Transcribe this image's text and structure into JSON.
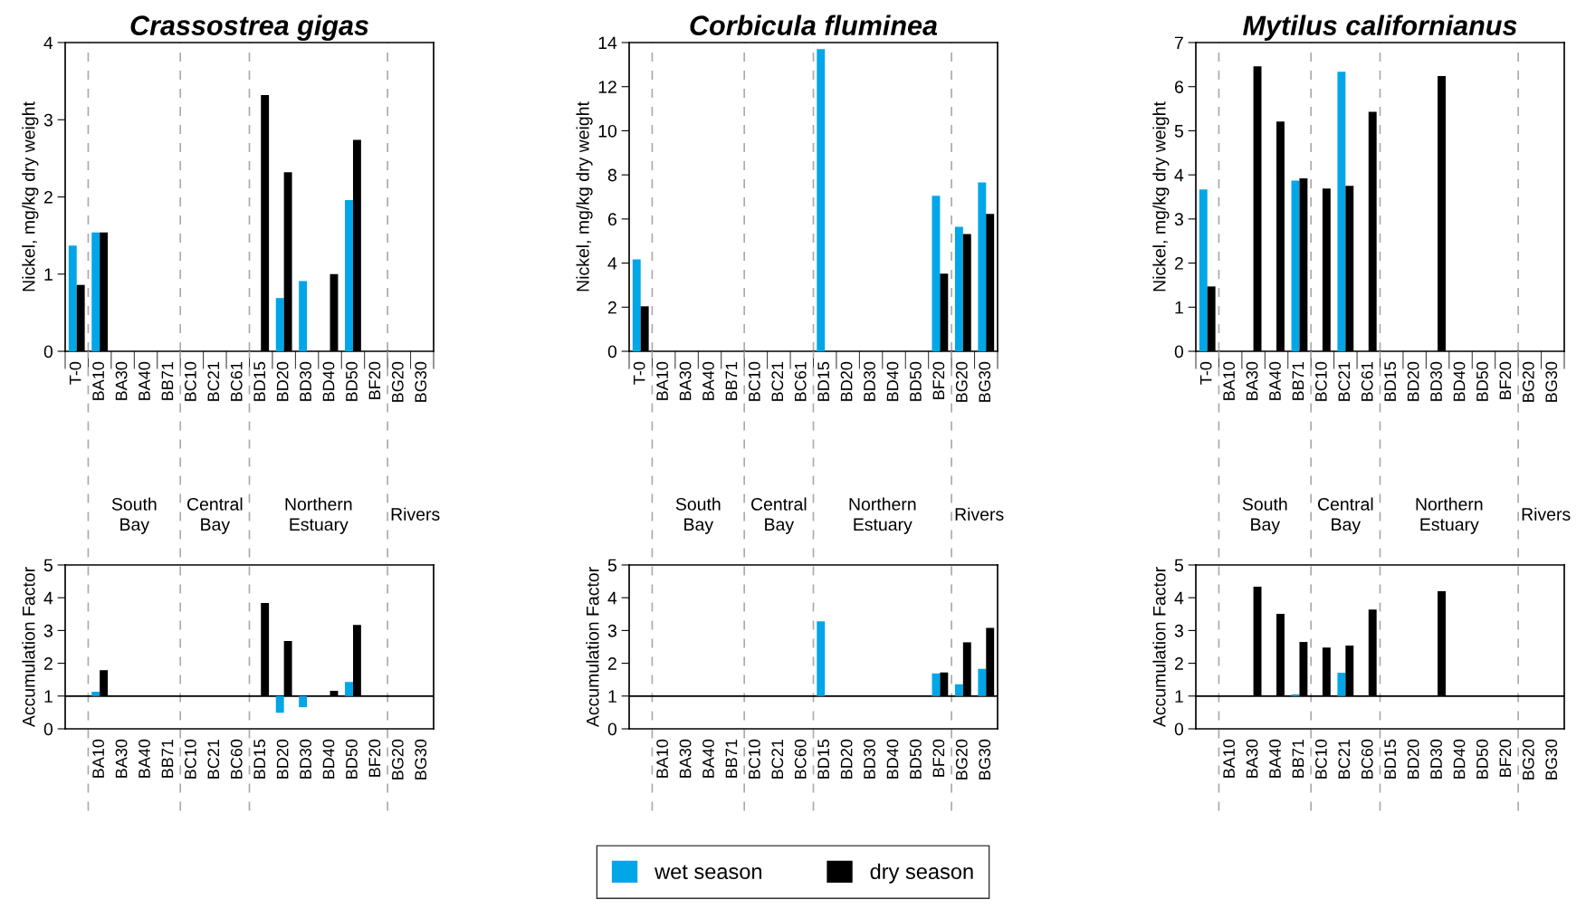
{
  "chart_data": [
    {
      "type": "bar",
      "title": "Crassostrea gigas",
      "ylabel": "Nickel, mg/kg dry weight",
      "categories": [
        "T-0",
        "BA10",
        "BA30",
        "BA40",
        "BB71",
        "BC10",
        "BC21",
        "BC61",
        "BD15",
        "BD20",
        "BD30",
        "BD40",
        "BD50",
        "BF20",
        "BG20",
        "BG30"
      ],
      "series": [
        {
          "name": "wet season",
          "color": "#00a6e8",
          "values": [
            1.37,
            1.54,
            null,
            null,
            null,
            null,
            null,
            null,
            null,
            0.69,
            0.91,
            null,
            1.96,
            null,
            null,
            null
          ]
        },
        {
          "name": "dry season",
          "color": "#000000",
          "values": [
            0.86,
            1.54,
            null,
            null,
            null,
            null,
            null,
            null,
            3.32,
            2.32,
            null,
            1.0,
            2.74,
            null,
            null,
            null
          ]
        }
      ],
      "ylim": [
        0,
        4
      ],
      "yticks": [
        0,
        1,
        2,
        3,
        4
      ],
      "legend": "bottom"
    },
    {
      "type": "bar",
      "title": "Corbicula fluminea",
      "ylabel": "Nickel, mg/kg dry weight",
      "categories": [
        "T-0",
        "BA10",
        "BA30",
        "BA40",
        "BB71",
        "BC10",
        "BC21",
        "BC61",
        "BD15",
        "BD20",
        "BD30",
        "BD40",
        "BD50",
        "BF20",
        "BG20",
        "BG30"
      ],
      "series": [
        {
          "color": "#00a6e8",
          "values": [
            4.17,
            null,
            null,
            null,
            null,
            null,
            null,
            null,
            13.7,
            null,
            null,
            null,
            null,
            7.05,
            5.65,
            7.66
          ]
        },
        {
          "color": "#000000",
          "values": [
            2.04,
            null,
            null,
            null,
            null,
            null,
            null,
            null,
            null,
            null,
            null,
            null,
            null,
            3.52,
            5.32,
            6.23
          ]
        }
      ],
      "ylim": [
        0,
        14
      ],
      "yticks": [
        0,
        2,
        4,
        6,
        8,
        10,
        12,
        14
      ]
    },
    {
      "type": "bar",
      "title": "Mytilus californianus",
      "ylabel": "Nickel, mg/kg dry weight",
      "categories": [
        "T-0",
        "BA10",
        "BA30",
        "BA40",
        "BB71",
        "BC10",
        "BC21",
        "BC61",
        "BD15",
        "BD20",
        "BD30",
        "BD40",
        "BD50",
        "BF20",
        "BG20",
        "BG30"
      ],
      "series": [
        {
          "color": "#00a6e8",
          "values": [
            3.67,
            null,
            null,
            null,
            3.87,
            null,
            6.34,
            null,
            null,
            null,
            null,
            null,
            null,
            null,
            null,
            null
          ]
        },
        {
          "color": "#000000",
          "values": [
            1.47,
            null,
            6.46,
            5.21,
            3.92,
            3.69,
            3.75,
            5.43,
            null,
            null,
            6.24,
            null,
            null,
            null,
            null,
            null
          ]
        }
      ],
      "ylim": [
        0,
        7
      ],
      "yticks": [
        0,
        1,
        2,
        3,
        4,
        5,
        6,
        7
      ]
    },
    {
      "type": "bar",
      "ylabel": "Accumulation Factor",
      "categories": [
        null,
        "BA10",
        "BA30",
        "BA40",
        "BB71",
        "BC10",
        "BC21",
        "BC60",
        "BD15",
        "BD20",
        "BD30",
        "BD40",
        "BD50",
        "BF20",
        "BG20",
        "BG30"
      ],
      "series": [
        {
          "color": "#00a6e8",
          "base": [
            null,
            1,
            null,
            null,
            null,
            null,
            null,
            null,
            null,
            1,
            1,
            null,
            1,
            null,
            null,
            null
          ],
          "values": [
            null,
            0.13,
            null,
            null,
            null,
            null,
            null,
            null,
            null,
            -0.51,
            -0.34,
            null,
            0.43,
            null,
            null,
            null
          ]
        },
        {
          "color": "#000000",
          "base": [
            null,
            1,
            null,
            null,
            null,
            null,
            null,
            null,
            1,
            1,
            null,
            1,
            1,
            null,
            null,
            null
          ],
          "values": [
            null,
            0.79,
            null,
            null,
            null,
            null,
            null,
            null,
            2.84,
            1.68,
            null,
            0.16,
            2.17,
            null,
            null,
            null
          ]
        }
      ],
      "ylim": [
        0,
        5
      ],
      "yticks": [
        0,
        1,
        2,
        3,
        4,
        5
      ],
      "annotations": [
        "South\nBay",
        "Central\nBay",
        "Northern\nEstuary",
        "Rivers"
      ],
      "ref_lines": [
        {
          "axis": "y",
          "value": 1,
          "color": "#000000",
          "line_style": "solid"
        }
      ]
    },
    {
      "type": "bar",
      "ylabel": "Accumulation Factor",
      "categories": [
        null,
        "BA10",
        "BA30",
        "BA40",
        "BB71",
        "BC10",
        "BC21",
        "BC60",
        "BD15",
        "BD20",
        "BD30",
        "BD40",
        "BD50",
        "BF20",
        "BG20",
        "BG30"
      ],
      "series": [
        {
          "color": "#00a6e8",
          "base": [
            null,
            null,
            null,
            null,
            null,
            null,
            null,
            null,
            1,
            null,
            null,
            null,
            null,
            1,
            1,
            1
          ],
          "values": [
            null,
            null,
            null,
            null,
            null,
            null,
            null,
            null,
            2.28,
            null,
            null,
            null,
            null,
            0.69,
            0.36,
            0.83
          ]
        },
        {
          "color": "#000000",
          "base": [
            null,
            null,
            null,
            null,
            null,
            null,
            null,
            null,
            null,
            null,
            null,
            null,
            null,
            1,
            1,
            1
          ],
          "values": [
            null,
            null,
            null,
            null,
            null,
            null,
            null,
            null,
            null,
            null,
            null,
            null,
            null,
            0.72,
            1.64,
            2.08
          ]
        }
      ],
      "ylim": [
        0,
        5
      ],
      "yticks": [
        0,
        1,
        2,
        3,
        4,
        5
      ],
      "annotations": [
        "South\nBay",
        "Central\nBay",
        "Northern\nEstuary",
        "Rivers"
      ],
      "ref_lines": [
        {
          "axis": "y",
          "value": 1,
          "color": "#000000",
          "line_style": "solid"
        }
      ]
    },
    {
      "type": "bar",
      "ylabel": "Accumulation Factor",
      "categories": [
        null,
        "BA10",
        "BA30",
        "BA40",
        "BB71",
        "BC10",
        "BC21",
        "BC60",
        "BD15",
        "BD20",
        "BD30",
        "BD40",
        "BD50",
        "BF20",
        "BG20",
        "BG30"
      ],
      "series": [
        {
          "color": "#00a6e8",
          "base": [
            null,
            null,
            null,
            null,
            1,
            null,
            1,
            null,
            null,
            null,
            null,
            null,
            null,
            null,
            null,
            null
          ],
          "values": [
            null,
            null,
            null,
            null,
            0.05,
            null,
            0.71,
            null,
            null,
            null,
            null,
            null,
            null,
            null,
            null,
            null
          ]
        },
        {
          "color": "#000000",
          "base": [
            null,
            null,
            1,
            1,
            1,
            1,
            1,
            1,
            null,
            null,
            1,
            null,
            null,
            null,
            null,
            null
          ],
          "values": [
            null,
            null,
            3.34,
            2.51,
            1.65,
            1.48,
            1.54,
            2.64,
            null,
            null,
            3.2,
            null,
            null,
            null,
            null,
            null
          ]
        }
      ],
      "ylim": [
        0,
        5
      ],
      "yticks": [
        0,
        1,
        2,
        3,
        4,
        5
      ],
      "annotations": [
        "South\nBay",
        "Central\nBay",
        "Northern\nEstuary",
        "Rivers"
      ],
      "ref_lines": [
        {
          "axis": "y",
          "value": 1,
          "color": "#000000",
          "line_style": "solid"
        }
      ]
    }
  ]
}
